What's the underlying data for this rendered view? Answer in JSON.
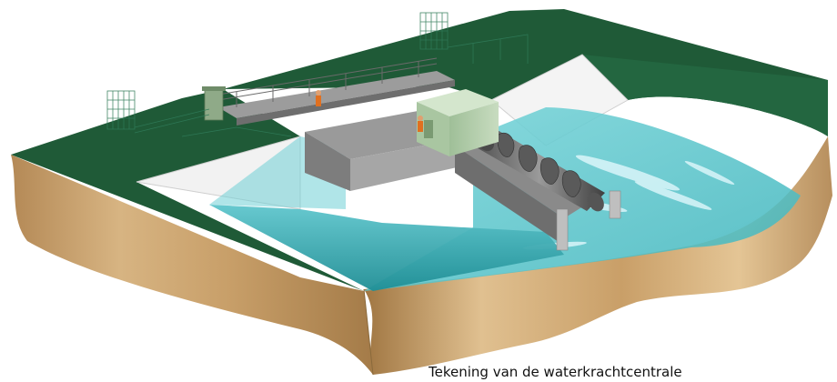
{
  "caption": "Tekening van de waterkrachtcentrale",
  "colors": {
    "grass": "#1f5a37",
    "grass_dark": "#174a2c",
    "soil": "#c9a574",
    "soil_dark": "#9d7a4c",
    "water": "#5cc8cf",
    "water_deep": "#1c8f96",
    "concrete": "#8e8e8e",
    "concrete_light": "#b9b9b9",
    "building": "#b9d3b0",
    "screw": "#6a6a6a",
    "fence": "#2f7a58"
  },
  "icons": [
    "archimedes-screw-icon",
    "control-building-icon",
    "fence-icon",
    "worker-icon"
  ]
}
